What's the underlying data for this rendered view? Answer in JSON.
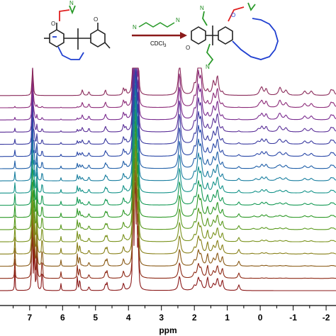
{
  "scheme": {
    "reagent_label": "N",
    "solvent_label": "CDCl",
    "solvent_subscript": "3",
    "atom_O": "O",
    "atom_N": "N",
    "arrow_color": "#8b1a1a"
  },
  "chart_data": {
    "type": "line",
    "title": "",
    "xlabel": "ppm",
    "ylabel": "",
    "xlim": [
      7.9,
      -2.3
    ],
    "x_reversed": true,
    "grid": false,
    "tick_labels": [
      "7",
      "6",
      "5",
      "4",
      "3",
      "2",
      "1",
      "0",
      "-1",
      "-2"
    ],
    "tick_values": [
      7,
      6,
      5,
      4,
      3,
      2,
      1,
      0,
      -1,
      -2
    ],
    "trace_count": 17,
    "trace_colors": [
      "#8b1a1a",
      "#8e2a16",
      "#8a5a16",
      "#888018",
      "#7a921c",
      "#5a9a1e",
      "#2f9a28",
      "#159a55",
      "#14938a",
      "#1a7fa0",
      "#1f5fa8",
      "#2a48a8",
      "#3a3aa0",
      "#5a2f98",
      "#7a2a8e",
      "#8c2a78",
      "#8a2a5a"
    ],
    "series": [
      {
        "description_key": "host-guest spectra (bottom = free host, top = complex)",
        "peaks_ppm_free": [
          6.93,
          6.86,
          6.78,
          6.62,
          6.05,
          5.55,
          5.48,
          4.65,
          4.13,
          3.86,
          3.8,
          3.75,
          3.7,
          2.48,
          1.85,
          1.72,
          1.55,
          1.3,
          1.15,
          0.65
        ],
        "peaks_ppm_complex": [
          6.91,
          5.4,
          4.72,
          4.08,
          3.85,
          3.78,
          3.72,
          2.45,
          1.95,
          1.85,
          1.4,
          1.3,
          -0.05,
          -0.15,
          -0.6,
          -0.75,
          -1.35,
          -1.55,
          -2.15,
          -2.2
        ]
      }
    ]
  }
}
